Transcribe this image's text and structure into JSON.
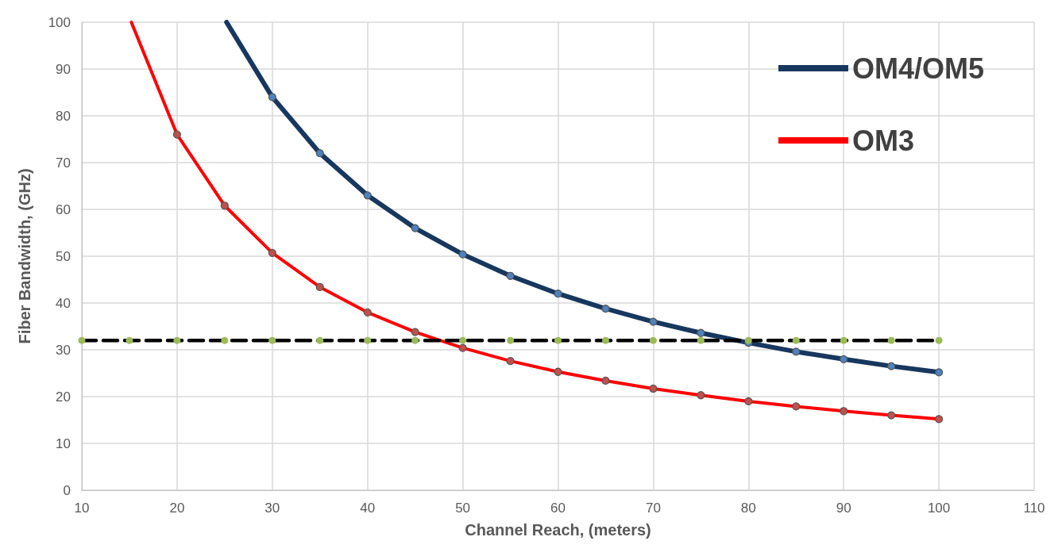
{
  "chart_data": {
    "type": "line",
    "xlabel": "Channel Reach, (meters)",
    "ylabel": "Fiber Bandwidth, (GHz)",
    "xlim": [
      10,
      110
    ],
    "xticks": [
      10,
      20,
      30,
      40,
      50,
      60,
      70,
      80,
      90,
      100,
      110
    ],
    "ylim": [
      0,
      100
    ],
    "yticks": [
      0,
      10,
      20,
      30,
      40,
      50,
      60,
      70,
      80,
      90,
      100
    ],
    "grid": true,
    "legend": "top right",
    "marker": "circle",
    "series": [
      {
        "name": "OM4/OM5",
        "color": "#17375e",
        "x": [
          25.2,
          30,
          35,
          40,
          45,
          50,
          55,
          60,
          65,
          70,
          75,
          80,
          85,
          90,
          95,
          100
        ],
        "values": [
          100,
          84,
          72,
          63,
          56,
          50.4,
          45.8,
          42,
          38.8,
          36,
          33.6,
          31.5,
          29.6,
          28,
          26.5,
          25.2
        ],
        "colors": [
          "#4f81bd",
          "#4f81bd",
          "#4f81bd",
          "#4f81bd",
          "#4f81bd",
          "#4f81bd",
          "#4f81bd",
          "#4f81bd",
          "#4f81bd",
          "#4f81bd",
          "#4f81bd",
          "#4f81bd",
          "#4f81bd",
          "#4f81bd",
          "#4f81bd",
          "#4f81bd"
        ]
      },
      {
        "name": "OM3",
        "color": "#ff0000",
        "x": [
          15.2,
          20,
          25,
          30,
          35,
          40,
          45,
          50,
          55,
          60,
          65,
          70,
          75,
          80,
          85,
          90,
          95,
          100
        ],
        "values": [
          100,
          76,
          60.8,
          50.7,
          43.4,
          38,
          33.8,
          30.4,
          27.6,
          25.3,
          23.4,
          21.7,
          20.3,
          19,
          17.9,
          16.9,
          16,
          15.2
        ],
        "colors": [
          "#c0504d",
          "#c0504d",
          "#c0504d",
          "#c0504d",
          "#c0504d",
          "#c0504d",
          "#c0504d",
          "#c0504d",
          "#c0504d",
          "#c0504d",
          "#c0504d",
          "#c0504d",
          "#c0504d",
          "#c0504d",
          "#c0504d",
          "#c0504d",
          "#c0504d",
          "#c0504d"
        ]
      },
      {
        "color": "#000000",
        "line_style": "dashed",
        "x": [
          10,
          15,
          20,
          25,
          30,
          35,
          40,
          45,
          50,
          55,
          60,
          65,
          70,
          75,
          80,
          85,
          90,
          95,
          100
        ],
        "values": [
          32,
          32,
          32,
          32,
          32,
          32,
          32,
          32,
          32,
          32,
          32,
          32,
          32,
          32,
          32,
          32,
          32,
          32,
          32
        ],
        "colors": [
          "#9bbb59",
          "#9bbb59",
          "#9bbb59",
          "#9bbb59",
          "#9bbb59",
          "#9bbb59",
          "#9bbb59",
          "#9bbb59",
          "#9bbb59",
          "#9bbb59",
          "#9bbb59",
          "#9bbb59",
          "#9bbb59",
          "#9bbb59",
          "#9bbb59",
          "#9bbb59",
          "#9bbb59",
          "#9bbb59",
          "#9bbb59"
        ]
      }
    ]
  }
}
